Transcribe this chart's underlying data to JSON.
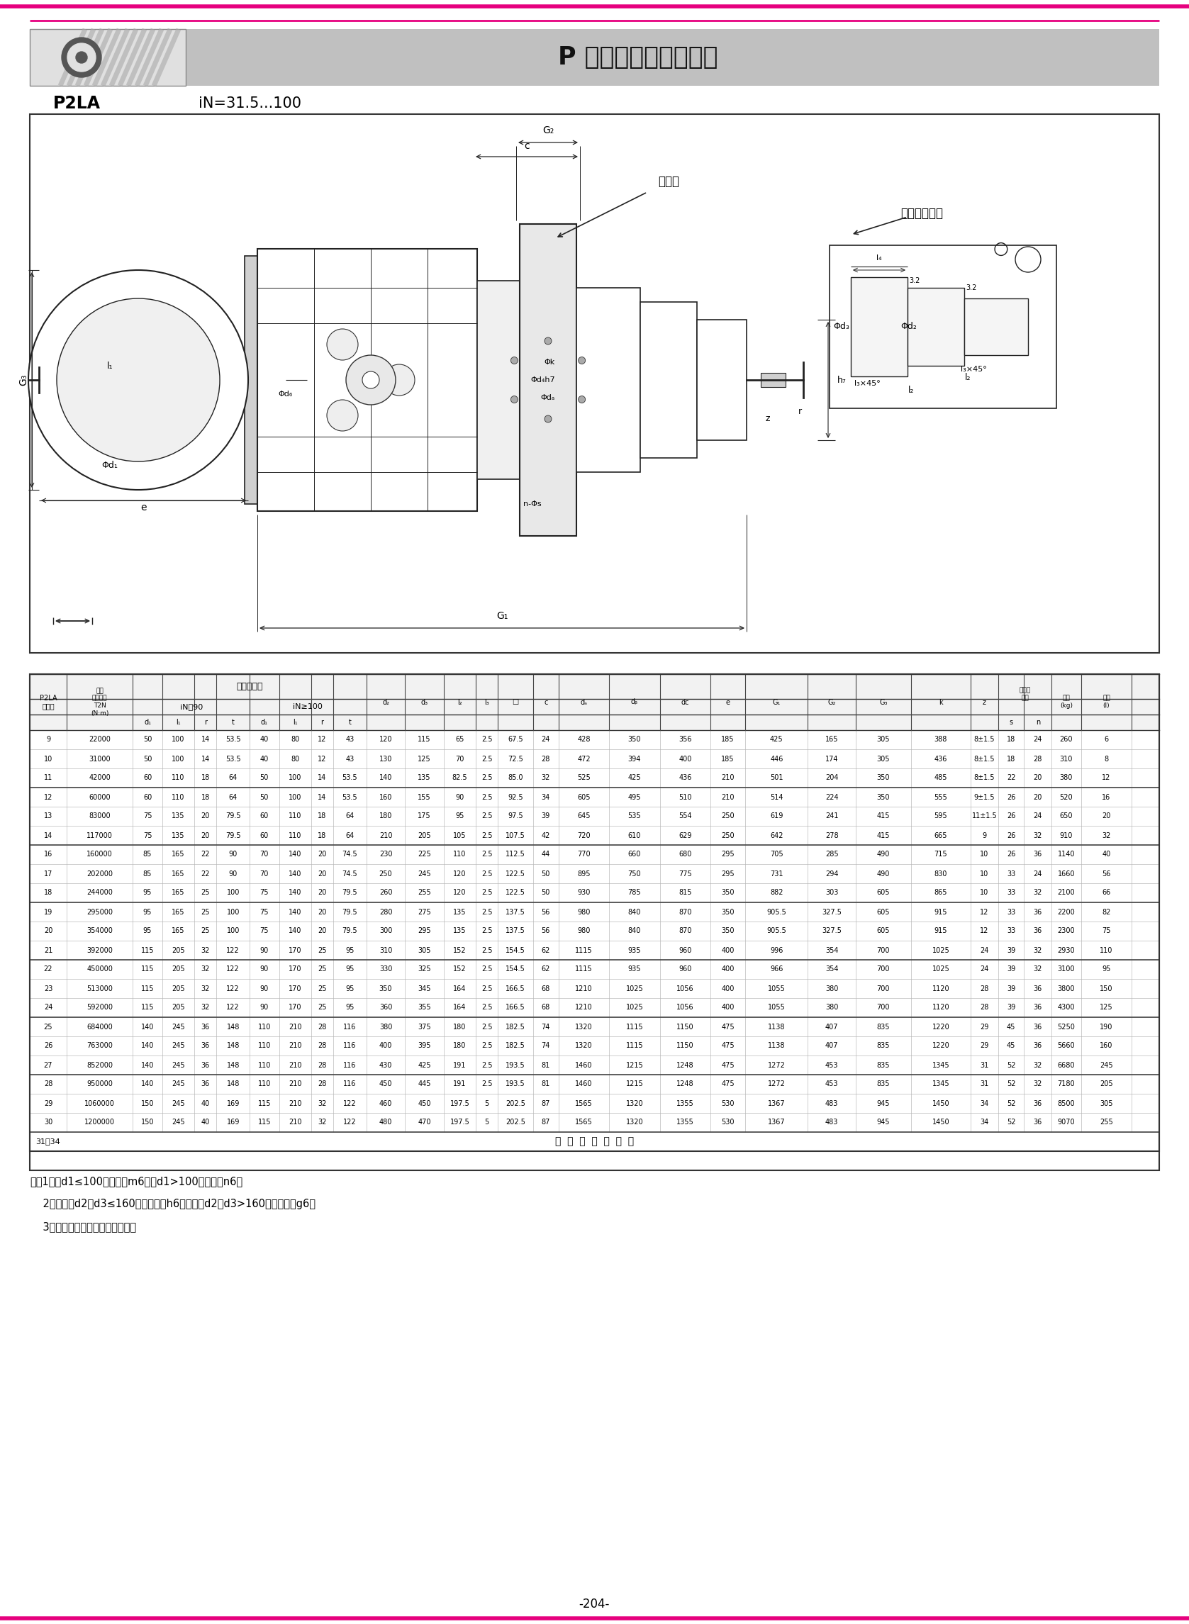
{
  "title": "P 系列行星齒輪減速器",
  "subtitle_left": "P2LA",
  "subtitle_right": "iN=31.5...100",
  "page_number": "-204-",
  "notes": [
    "注：1、當d1≤100時公差為m6，當d1>100時公差為n6；",
    "    2、當尺寸d2或d3≤160時，公差為h6；當尺寸d2或d3>160時，公差為g6；",
    "    3、重量不包括脹緊盤和潤滑油。"
  ],
  "last_row": "31～34          接  客  戶  要  求  供  貨",
  "table_data": [
    [
      9,
      22000,
      50,
      100,
      14,
      53.5,
      40,
      80,
      12,
      43,
      120,
      115,
      65,
      2.5,
      67.5,
      24,
      428,
      350,
      356,
      185,
      425,
      165,
      305,
      388,
      "8±1.5",
      18,
      24,
      260,
      6
    ],
    [
      10,
      31000,
      50,
      100,
      14,
      53.5,
      40,
      80,
      12,
      43,
      130,
      125,
      70,
      2.5,
      72.5,
      28,
      472,
      394,
      400,
      185,
      446,
      174,
      305,
      436,
      "8±1.5",
      18,
      28,
      310,
      8
    ],
    [
      11,
      42000,
      60,
      110,
      18,
      64,
      50,
      100,
      14,
      53.5,
      140,
      135,
      82.5,
      2.5,
      85.0,
      32,
      525,
      425,
      436,
      210,
      501,
      204,
      350,
      485,
      "8±1.5",
      22,
      20,
      380,
      12
    ],
    [
      12,
      60000,
      60,
      110,
      18,
      64,
      50,
      100,
      14,
      53.5,
      160,
      155,
      90,
      2.5,
      92.5,
      34,
      605,
      495,
      510,
      210,
      514,
      224,
      350,
      555,
      "9±1.5",
      26,
      20,
      520,
      16
    ],
    [
      13,
      83000,
      75,
      135,
      20,
      79.5,
      60,
      110,
      18,
      64,
      180,
      175,
      95,
      2.5,
      97.5,
      39,
      645,
      535,
      554,
      250,
      619,
      241,
      415,
      595,
      "11±1.5",
      26,
      24,
      650,
      20
    ],
    [
      14,
      117000,
      75,
      135,
      20,
      79.5,
      60,
      110,
      18,
      64,
      210,
      205,
      105,
      2.5,
      107.5,
      42,
      720,
      610,
      629,
      250,
      642,
      278,
      415,
      665,
      9,
      26,
      32,
      910,
      32
    ],
    [
      16,
      160000,
      85,
      165,
      22,
      90,
      70,
      140,
      20,
      74.5,
      230,
      225,
      110,
      2.5,
      112.5,
      44,
      770,
      660,
      680,
      295,
      705,
      285,
      490,
      715,
      10,
      26,
      36,
      1140,
      40
    ],
    [
      17,
      202000,
      85,
      165,
      22,
      90,
      70,
      140,
      20,
      74.5,
      250,
      245,
      120,
      2.5,
      122.5,
      50,
      895,
      750,
      775,
      295,
      731,
      294,
      490,
      830,
      10,
      33,
      24,
      1660,
      56
    ],
    [
      18,
      244000,
      95,
      165,
      25,
      100,
      75,
      140,
      20,
      79.5,
      260,
      255,
      120,
      2.5,
      122.5,
      50,
      930,
      785,
      815,
      350,
      882,
      303,
      605,
      865,
      10,
      33,
      32,
      2100,
      66
    ],
    [
      19,
      295000,
      95,
      165,
      25,
      100,
      75,
      140,
      20,
      79.5,
      280,
      275,
      135,
      2.5,
      137.5,
      56,
      980,
      840,
      870,
      350,
      905.5,
      327.5,
      605,
      915,
      12,
      33,
      36,
      2200,
      82
    ],
    [
      20,
      354000,
      95,
      165,
      25,
      100,
      75,
      140,
      20,
      79.5,
      300,
      295,
      135,
      2.5,
      137.5,
      56,
      980,
      840,
      870,
      350,
      905.5,
      327.5,
      605,
      915,
      12,
      33,
      36,
      2300,
      75
    ],
    [
      21,
      392000,
      115,
      205,
      32,
      122,
      90,
      170,
      25,
      95,
      310,
      305,
      152,
      2.5,
      154.5,
      62,
      1115,
      935,
      960,
      400,
      996,
      354,
      700,
      1025,
      24,
      39,
      32,
      2930,
      110
    ],
    [
      22,
      450000,
      115,
      205,
      32,
      122,
      90,
      170,
      25,
      95,
      330,
      325,
      152,
      2.5,
      154.5,
      62,
      1115,
      935,
      960,
      400,
      966,
      354,
      700,
      1025,
      24,
      39,
      32,
      3100,
      95
    ],
    [
      23,
      513000,
      115,
      205,
      32,
      122,
      90,
      170,
      25,
      95,
      350,
      345,
      164,
      2.5,
      166.5,
      68,
      1210,
      1025,
      1056,
      400,
      1055,
      380,
      700,
      1120,
      28,
      39,
      36,
      3800,
      150
    ],
    [
      24,
      592000,
      115,
      205,
      32,
      122,
      90,
      170,
      25,
      95,
      360,
      355,
      164,
      2.5,
      166.5,
      68,
      1210,
      1025,
      1056,
      400,
      1055,
      380,
      700,
      1120,
      28,
      39,
      36,
      4300,
      125
    ],
    [
      25,
      684000,
      140,
      245,
      36,
      148,
      110,
      210,
      28,
      116,
      380,
      375,
      180,
      2.5,
      182.5,
      74,
      1320,
      1115,
      1150,
      475,
      1138,
      407,
      835,
      1220,
      29,
      45,
      36,
      5250,
      190
    ],
    [
      26,
      763000,
      140,
      245,
      36,
      148,
      110,
      210,
      28,
      116,
      400,
      395,
      180,
      2.5,
      182.5,
      74,
      1320,
      1115,
      1150,
      475,
      1138,
      407,
      835,
      1220,
      29,
      45,
      36,
      5660,
      160
    ],
    [
      27,
      852000,
      140,
      245,
      36,
      148,
      110,
      210,
      28,
      116,
      430,
      425,
      191,
      2.5,
      193.5,
      81,
      1460,
      1215,
      1248,
      475,
      1272,
      453,
      835,
      1345,
      31,
      52,
      32,
      6680,
      245
    ],
    [
      28,
      950000,
      140,
      245,
      36,
      148,
      110,
      210,
      28,
      116,
      450,
      445,
      191,
      2.5,
      193.5,
      81,
      1460,
      1215,
      1248,
      475,
      1272,
      453,
      835,
      1345,
      31,
      52,
      32,
      7180,
      205
    ],
    [
      29,
      1060000,
      150,
      245,
      40,
      169,
      115,
      210,
      32,
      122,
      460,
      450,
      197.5,
      5,
      202.5,
      87,
      1565,
      1320,
      1355,
      530,
      1367,
      483,
      945,
      1450,
      34,
      52,
      36,
      8500,
      305
    ],
    [
      30,
      1200000,
      150,
      245,
      40,
      169,
      115,
      210,
      32,
      122,
      480,
      470,
      197.5,
      5,
      202.5,
      87,
      1565,
      1320,
      1355,
      530,
      1367,
      483,
      945,
      1450,
      34,
      52,
      36,
      9070,
      255
    ]
  ]
}
